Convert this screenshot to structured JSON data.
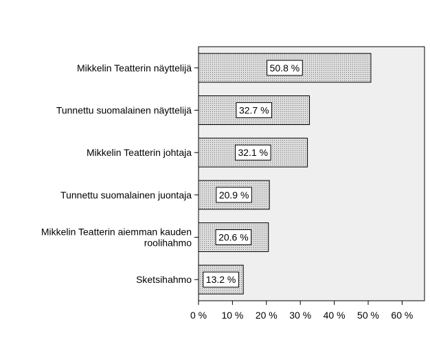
{
  "chart_data": {
    "type": "bar",
    "orientation": "horizontal",
    "categories": [
      [
        "Mikkelin Teatterin näyttelijä"
      ],
      [
        "Tunnettu suomalainen näyttelijä"
      ],
      [
        "Mikkelin Teatterin johtaja"
      ],
      [
        "Tunnettu suomalainen juontaja"
      ],
      [
        "Mikkelin Teatterin aiemman kauden",
        "roolihahmo"
      ],
      [
        "Sketsihahmo"
      ]
    ],
    "values": [
      50.8,
      32.7,
      32.1,
      20.9,
      20.6,
      13.2
    ],
    "value_labels": [
      "50.8 %",
      "32.7 %",
      "32.1 %",
      "20.9 %",
      "20.6 %",
      "13.2 %"
    ],
    "xlim": [
      0,
      66.6
    ],
    "xticks": [
      0,
      10,
      20,
      30,
      40,
      50,
      60
    ],
    "xtick_labels": [
      "0 %",
      "10 %",
      "20 %",
      "30 %",
      "40 %",
      "50 %",
      "60 %"
    ],
    "title": "",
    "xlabel": "",
    "ylabel": "",
    "grid": false,
    "colors": {
      "plot_background": "#efefef",
      "bar_fill": "#dcdcdc",
      "bar_pattern_dot": "#7a7a7a",
      "axis": "#000000",
      "label_box": "#ffffff"
    }
  }
}
